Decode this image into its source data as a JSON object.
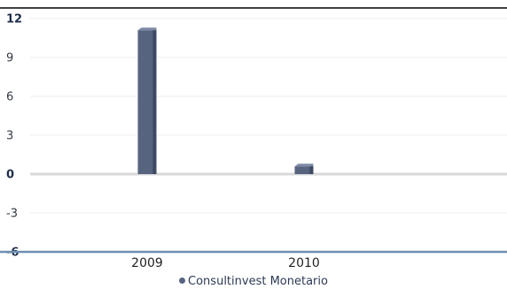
{
  "chart_data": {
    "type": "bar",
    "categories": [
      "2009",
      "2010"
    ],
    "series": [
      {
        "name": "Consultinvest Monetario",
        "values": [
          11.1,
          0.6
        ]
      }
    ],
    "ylim": [
      -6,
      12
    ],
    "yticks": [
      12,
      9,
      6,
      3,
      0,
      -3,
      -6
    ],
    "grid": true,
    "legend": "bottom",
    "colors": {
      "bar": "#56647f",
      "bar_light": "#7d8ba6",
      "bar_dark": "#3d4862",
      "frame": "#000000",
      "zero_line": "#d9d9d9",
      "bottom_axis": "#6f8fb0",
      "grid": "#eeeeee"
    }
  }
}
